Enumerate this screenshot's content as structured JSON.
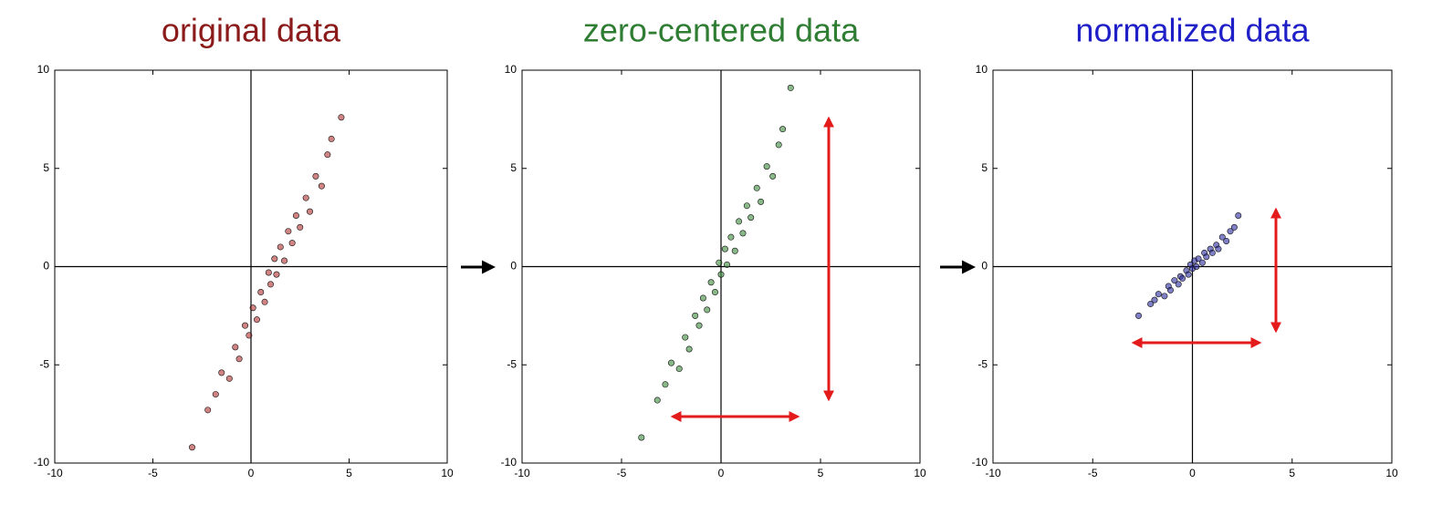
{
  "chart_data": [
    {
      "type": "scatter",
      "title": "original data",
      "title_color": "#8b1a1a",
      "series": [
        {
          "color": "#b03030",
          "x": [
            -3.0,
            -2.2,
            -1.8,
            -1.5,
            -1.1,
            -0.8,
            -0.6,
            -0.3,
            -0.1,
            0.1,
            0.3,
            0.5,
            0.7,
            0.9,
            1.0,
            1.2,
            1.3,
            1.5,
            1.7,
            1.9,
            2.1,
            2.3,
            2.5,
            2.8,
            3.0,
            3.3,
            3.6,
            3.9,
            4.1,
            4.6
          ],
          "values": [
            -9.2,
            -7.3,
            -6.5,
            -5.4,
            -5.7,
            -4.1,
            -4.7,
            -3.0,
            -3.5,
            -2.1,
            -2.7,
            -1.3,
            -1.8,
            -0.3,
            -0.9,
            0.4,
            -0.4,
            1.0,
            0.3,
            1.8,
            1.2,
            2.6,
            2.0,
            3.5,
            2.8,
            4.6,
            4.1,
            5.7,
            6.5,
            7.6
          ]
        }
      ],
      "xlim": [
        -10,
        10
      ],
      "ylim": [
        -10,
        10
      ],
      "xticks": [
        -10,
        -5,
        0,
        5,
        10
      ],
      "yticks": [
        -10,
        -5,
        0,
        5,
        10
      ]
    },
    {
      "type": "scatter",
      "title": "zero-centered data",
      "title_color": "#2e7d32",
      "series": [
        {
          "color": "#3a8a3a",
          "x": [
            -4.0,
            -3.2,
            -2.8,
            -2.5,
            -2.1,
            -1.8,
            -1.6,
            -1.3,
            -1.1,
            -0.9,
            -0.7,
            -0.5,
            -0.3,
            -0.1,
            0.0,
            0.2,
            0.3,
            0.5,
            0.7,
            0.9,
            1.1,
            1.3,
            1.5,
            1.8,
            2.0,
            2.3,
            2.6,
            2.9,
            3.1,
            3.5
          ],
          "values": [
            -8.7,
            -6.8,
            -6.0,
            -4.9,
            -5.2,
            -3.6,
            -4.2,
            -2.5,
            -3.0,
            -1.6,
            -2.2,
            -0.8,
            -1.3,
            0.2,
            -0.4,
            0.9,
            0.1,
            1.5,
            0.8,
            2.3,
            1.7,
            3.1,
            2.5,
            4.0,
            3.3,
            5.1,
            4.6,
            6.2,
            7.0,
            9.1
          ]
        }
      ],
      "xlim": [
        -10,
        10
      ],
      "ylim": [
        -10,
        10
      ],
      "xticks": [
        -10,
        -5,
        0,
        5,
        10
      ],
      "yticks": [
        -10,
        -5,
        0,
        5,
        10
      ]
    },
    {
      "type": "scatter",
      "title": "normalized data",
      "title_color": "#1f1fc8",
      "series": [
        {
          "color": "#2a2aa0",
          "x": [
            -2.7,
            -2.1,
            -1.9,
            -1.7,
            -1.4,
            -1.2,
            -1.1,
            -0.9,
            -0.7,
            -0.6,
            -0.5,
            -0.3,
            -0.2,
            -0.1,
            0.0,
            0.1,
            0.2,
            0.3,
            0.5,
            0.6,
            0.7,
            0.9,
            1.0,
            1.2,
            1.3,
            1.5,
            1.7,
            1.9,
            2.1,
            2.3
          ],
          "values": [
            -2.5,
            -1.9,
            -1.7,
            -1.4,
            -1.5,
            -1.0,
            -1.2,
            -0.7,
            -0.9,
            -0.5,
            -0.6,
            -0.2,
            -0.4,
            0.1,
            -0.1,
            0.3,
            0.0,
            0.4,
            0.2,
            0.7,
            0.5,
            0.9,
            0.7,
            1.1,
            0.9,
            1.5,
            1.3,
            1.8,
            2.0,
            2.6
          ]
        }
      ],
      "xlim": [
        -10,
        10
      ],
      "ylim": [
        -10,
        10
      ],
      "xticks": [
        -10,
        -5,
        0,
        5,
        10
      ],
      "yticks": [
        -10,
        -5,
        0,
        5,
        10
      ]
    }
  ]
}
